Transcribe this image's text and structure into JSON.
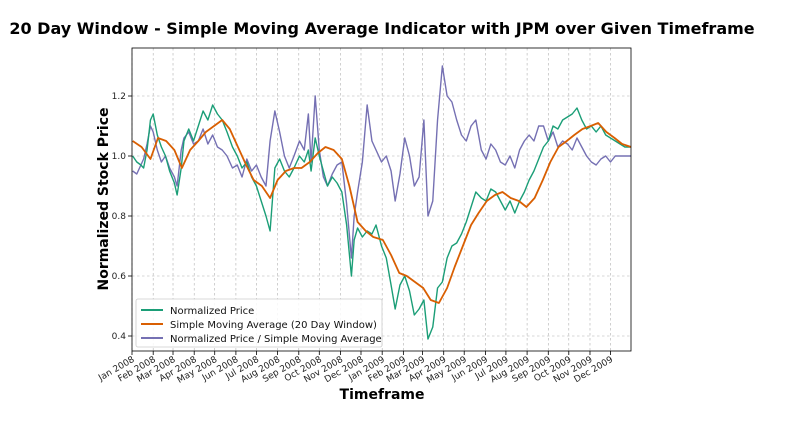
{
  "chart_data": {
    "type": "line",
    "title": "20 Day Window - Simple Moving Average Indicator with JPM over Given Timeframe",
    "xlabel": "Timeframe",
    "ylabel": "Normalized Stock Price",
    "ylim": [
      0.35,
      1.36
    ],
    "xlim": [
      "2008-01-01",
      "2009-12-31"
    ],
    "y_ticks": [
      0.4,
      0.6,
      0.8,
      1.0,
      1.2
    ],
    "y_tick_labels": [
      "0.4",
      "0.6",
      "0.8",
      "1.0",
      "1.2"
    ],
    "x_ticks": [
      "2008-01-01",
      "2008-02-01",
      "2008-03-01",
      "2008-04-01",
      "2008-05-01",
      "2008-06-01",
      "2008-07-01",
      "2008-08-01",
      "2008-09-01",
      "2008-10-01",
      "2008-11-01",
      "2008-12-01",
      "2009-01-01",
      "2009-02-01",
      "2009-03-01",
      "2009-04-01",
      "2009-05-01",
      "2009-06-01",
      "2009-07-01",
      "2009-08-01",
      "2009-09-01",
      "2009-10-01",
      "2009-11-01",
      "2009-12-01"
    ],
    "x_tick_labels": [
      "Jan 2008",
      "Feb 2008",
      "Mar 2008",
      "Apr 2008",
      "May 2008",
      "Jun 2008",
      "Jul 2008",
      "Aug 2008",
      "Sep 2008",
      "Oct 2008",
      "Nov 2008",
      "Dec 2008",
      "Jan 2009",
      "Feb 2009",
      "Mar 2009",
      "Apr 2009",
      "May 2009",
      "Jun 2009",
      "Jul 2009",
      "Aug 2009",
      "Sep 2009",
      "Oct 2009",
      "Nov 2009",
      "Dec 2009"
    ],
    "grid": true,
    "legend_position": "lower-left",
    "series": [
      {
        "name": "Normalized Price",
        "color": "#1b9e77",
        "x": [
          "2008-01-02",
          "2008-01-08",
          "2008-01-14",
          "2008-01-18",
          "2008-01-23",
          "2008-01-28",
          "2008-02-01",
          "2008-02-07",
          "2008-02-13",
          "2008-02-19",
          "2008-02-25",
          "2008-03-03",
          "2008-03-07",
          "2008-03-13",
          "2008-03-17",
          "2008-03-24",
          "2008-03-31",
          "2008-04-07",
          "2008-04-14",
          "2008-04-21",
          "2008-04-28",
          "2008-05-05",
          "2008-05-12",
          "2008-05-19",
          "2008-05-27",
          "2008-06-03",
          "2008-06-10",
          "2008-06-17",
          "2008-06-24",
          "2008-07-01",
          "2008-07-08",
          "2008-07-15",
          "2008-07-21",
          "2008-07-28",
          "2008-08-04",
          "2008-08-11",
          "2008-08-18",
          "2008-08-25",
          "2008-09-02",
          "2008-09-09",
          "2008-09-15",
          "2008-09-19",
          "2008-09-25",
          "2008-10-01",
          "2008-10-07",
          "2008-10-13",
          "2008-10-20",
          "2008-10-27",
          "2008-11-03",
          "2008-11-10",
          "2008-11-17",
          "2008-11-21",
          "2008-11-26",
          "2008-12-03",
          "2008-12-10",
          "2008-12-17",
          "2008-12-23",
          "2008-12-31",
          "2009-01-07",
          "2009-01-14",
          "2009-01-20",
          "2009-01-27",
          "2009-02-03",
          "2009-02-10",
          "2009-02-17",
          "2009-02-24",
          "2009-03-03",
          "2009-03-09",
          "2009-03-16",
          "2009-03-23",
          "2009-03-30",
          "2009-04-06",
          "2009-04-13",
          "2009-04-20",
          "2009-04-27",
          "2009-05-04",
          "2009-05-11",
          "2009-05-18",
          "2009-05-26",
          "2009-06-02",
          "2009-06-09",
          "2009-06-16",
          "2009-06-23",
          "2009-06-30",
          "2009-07-07",
          "2009-07-14",
          "2009-07-21",
          "2009-07-28",
          "2009-08-04",
          "2009-08-11",
          "2009-08-18",
          "2009-08-25",
          "2009-09-01",
          "2009-09-08",
          "2009-09-15",
          "2009-09-22",
          "2009-09-29",
          "2009-10-06",
          "2009-10-13",
          "2009-10-20",
          "2009-10-27",
          "2009-11-03",
          "2009-11-10",
          "2009-11-17",
          "2009-11-24",
          "2009-12-01",
          "2009-12-08",
          "2009-12-15",
          "2009-12-22",
          "2009-12-31"
        ],
        "values": [
          1.0,
          0.98,
          0.97,
          0.96,
          1.02,
          1.12,
          1.14,
          1.07,
          1.03,
          1.0,
          0.95,
          0.91,
          0.87,
          0.96,
          1.05,
          1.09,
          1.05,
          1.1,
          1.15,
          1.12,
          1.17,
          1.14,
          1.12,
          1.08,
          1.03,
          1.0,
          0.96,
          0.98,
          0.93,
          0.9,
          0.85,
          0.8,
          0.75,
          0.96,
          0.99,
          0.95,
          0.93,
          0.96,
          1.0,
          0.98,
          1.02,
          0.95,
          1.06,
          1.0,
          0.95,
          0.9,
          0.93,
          0.91,
          0.88,
          0.77,
          0.6,
          0.72,
          0.76,
          0.73,
          0.75,
          0.74,
          0.77,
          0.7,
          0.66,
          0.57,
          0.49,
          0.57,
          0.6,
          0.55,
          0.47,
          0.49,
          0.52,
          0.39,
          0.43,
          0.56,
          0.58,
          0.66,
          0.7,
          0.71,
          0.74,
          0.78,
          0.83,
          0.88,
          0.86,
          0.85,
          0.89,
          0.88,
          0.85,
          0.82,
          0.85,
          0.81,
          0.85,
          0.88,
          0.92,
          0.95,
          0.99,
          1.03,
          1.05,
          1.1,
          1.09,
          1.12,
          1.13,
          1.14,
          1.16,
          1.12,
          1.09,
          1.1,
          1.08,
          1.1,
          1.07,
          1.06,
          1.05,
          1.04,
          1.03,
          1.03
        ]
      },
      {
        "name": "Simple Moving Average (20 Day Window)",
        "color": "#d95f02",
        "x": [
          "2008-01-02",
          "2008-01-15",
          "2008-01-28",
          "2008-02-08",
          "2008-02-20",
          "2008-03-03",
          "2008-03-14",
          "2008-03-26",
          "2008-04-07",
          "2008-04-18",
          "2008-04-30",
          "2008-05-12",
          "2008-05-23",
          "2008-06-04",
          "2008-06-16",
          "2008-06-27",
          "2008-07-09",
          "2008-07-21",
          "2008-08-01",
          "2008-08-13",
          "2008-08-25",
          "2008-09-05",
          "2008-09-17",
          "2008-09-29",
          "2008-10-10",
          "2008-10-22",
          "2008-11-03",
          "2008-11-14",
          "2008-11-26",
          "2008-12-08",
          "2008-12-19",
          "2009-01-02",
          "2009-01-14",
          "2009-01-26",
          "2009-02-06",
          "2009-02-18",
          "2009-03-02",
          "2009-03-13",
          "2009-03-25",
          "2009-04-06",
          "2009-04-17",
          "2009-04-29",
          "2009-05-11",
          "2009-05-22",
          "2009-06-03",
          "2009-06-15",
          "2009-06-26",
          "2009-07-08",
          "2009-07-20",
          "2009-07-31",
          "2009-08-12",
          "2009-08-24",
          "2009-09-04",
          "2009-09-16",
          "2009-09-28",
          "2009-10-09",
          "2009-10-21",
          "2009-11-02",
          "2009-11-13",
          "2009-11-25",
          "2009-12-07",
          "2009-12-18",
          "2009-12-31"
        ],
        "values": [
          1.05,
          1.03,
          0.99,
          1.06,
          1.05,
          1.02,
          0.96,
          1.02,
          1.05,
          1.08,
          1.1,
          1.12,
          1.09,
          1.03,
          0.97,
          0.92,
          0.9,
          0.86,
          0.92,
          0.95,
          0.96,
          0.96,
          0.98,
          1.01,
          1.03,
          1.02,
          0.99,
          0.9,
          0.78,
          0.75,
          0.73,
          0.72,
          0.67,
          0.61,
          0.6,
          0.58,
          0.56,
          0.52,
          0.51,
          0.56,
          0.63,
          0.7,
          0.77,
          0.81,
          0.85,
          0.87,
          0.88,
          0.86,
          0.85,
          0.83,
          0.86,
          0.92,
          0.98,
          1.03,
          1.05,
          1.07,
          1.09,
          1.1,
          1.11,
          1.08,
          1.06,
          1.04,
          1.03
        ]
      },
      {
        "name": "Normalized Price / Simple Moving Average",
        "color": "#7570b3",
        "x": [
          "2008-01-02",
          "2008-01-08",
          "2008-01-14",
          "2008-01-18",
          "2008-01-23",
          "2008-01-28",
          "2008-02-01",
          "2008-02-07",
          "2008-02-13",
          "2008-02-19",
          "2008-02-25",
          "2008-03-03",
          "2008-03-07",
          "2008-03-13",
          "2008-03-17",
          "2008-03-24",
          "2008-03-31",
          "2008-04-07",
          "2008-04-14",
          "2008-04-21",
          "2008-04-28",
          "2008-05-05",
          "2008-05-12",
          "2008-05-19",
          "2008-05-27",
          "2008-06-03",
          "2008-06-10",
          "2008-06-17",
          "2008-06-24",
          "2008-07-01",
          "2008-07-08",
          "2008-07-15",
          "2008-07-21",
          "2008-07-28",
          "2008-08-04",
          "2008-08-11",
          "2008-08-18",
          "2008-08-25",
          "2008-09-02",
          "2008-09-09",
          "2008-09-15",
          "2008-09-19",
          "2008-09-25",
          "2008-10-01",
          "2008-10-07",
          "2008-10-13",
          "2008-10-20",
          "2008-10-27",
          "2008-11-03",
          "2008-11-10",
          "2008-11-17",
          "2008-11-21",
          "2008-11-26",
          "2008-12-03",
          "2008-12-10",
          "2008-12-17",
          "2008-12-23",
          "2008-12-31",
          "2009-01-07",
          "2009-01-14",
          "2009-01-20",
          "2009-01-27",
          "2009-02-03",
          "2009-02-10",
          "2009-02-17",
          "2009-02-24",
          "2009-03-03",
          "2009-03-09",
          "2009-03-16",
          "2009-03-23",
          "2009-03-30",
          "2009-04-06",
          "2009-04-13",
          "2009-04-20",
          "2009-04-27",
          "2009-05-04",
          "2009-05-11",
          "2009-05-18",
          "2009-05-26",
          "2009-06-02",
          "2009-06-09",
          "2009-06-16",
          "2009-06-23",
          "2009-06-30",
          "2009-07-07",
          "2009-07-14",
          "2009-07-21",
          "2009-07-28",
          "2009-08-04",
          "2009-08-11",
          "2009-08-18",
          "2009-08-25",
          "2009-09-01",
          "2009-09-08",
          "2009-09-15",
          "2009-09-22",
          "2009-09-29",
          "2009-10-06",
          "2009-10-13",
          "2009-10-20",
          "2009-10-27",
          "2009-11-03",
          "2009-11-10",
          "2009-11-17",
          "2009-11-24",
          "2009-12-01",
          "2009-12-08",
          "2009-12-15",
          "2009-12-22",
          "2009-12-31"
        ],
        "values": [
          0.95,
          0.94,
          0.97,
          0.99,
          1.04,
          1.1,
          1.08,
          1.02,
          0.98,
          1.0,
          0.96,
          0.93,
          0.9,
          1.02,
          1.06,
          1.08,
          1.04,
          1.05,
          1.09,
          1.04,
          1.07,
          1.03,
          1.02,
          1.0,
          0.96,
          0.97,
          0.93,
          0.99,
          0.95,
          0.97,
          0.93,
          0.9,
          1.05,
          1.15,
          1.08,
          1.0,
          0.96,
          1.0,
          1.05,
          1.02,
          1.14,
          0.98,
          1.2,
          1.02,
          0.93,
          0.9,
          0.94,
          0.97,
          0.98,
          0.84,
          0.66,
          0.8,
          0.88,
          0.98,
          1.17,
          1.05,
          1.02,
          0.98,
          1.0,
          0.95,
          0.85,
          0.94,
          1.06,
          1.0,
          0.9,
          0.93,
          1.12,
          0.8,
          0.85,
          1.12,
          1.3,
          1.2,
          1.18,
          1.12,
          1.07,
          1.05,
          1.1,
          1.12,
          1.02,
          0.99,
          1.04,
          1.02,
          0.98,
          0.97,
          1.0,
          0.96,
          1.02,
          1.05,
          1.07,
          1.05,
          1.1,
          1.1,
          1.05,
          1.08,
          1.03,
          1.05,
          1.04,
          1.02,
          1.06,
          1.03,
          1.0,
          0.98,
          0.97,
          0.99,
          1.0,
          0.98,
          1.0,
          1.0,
          1.0,
          1.0
        ]
      }
    ]
  }
}
